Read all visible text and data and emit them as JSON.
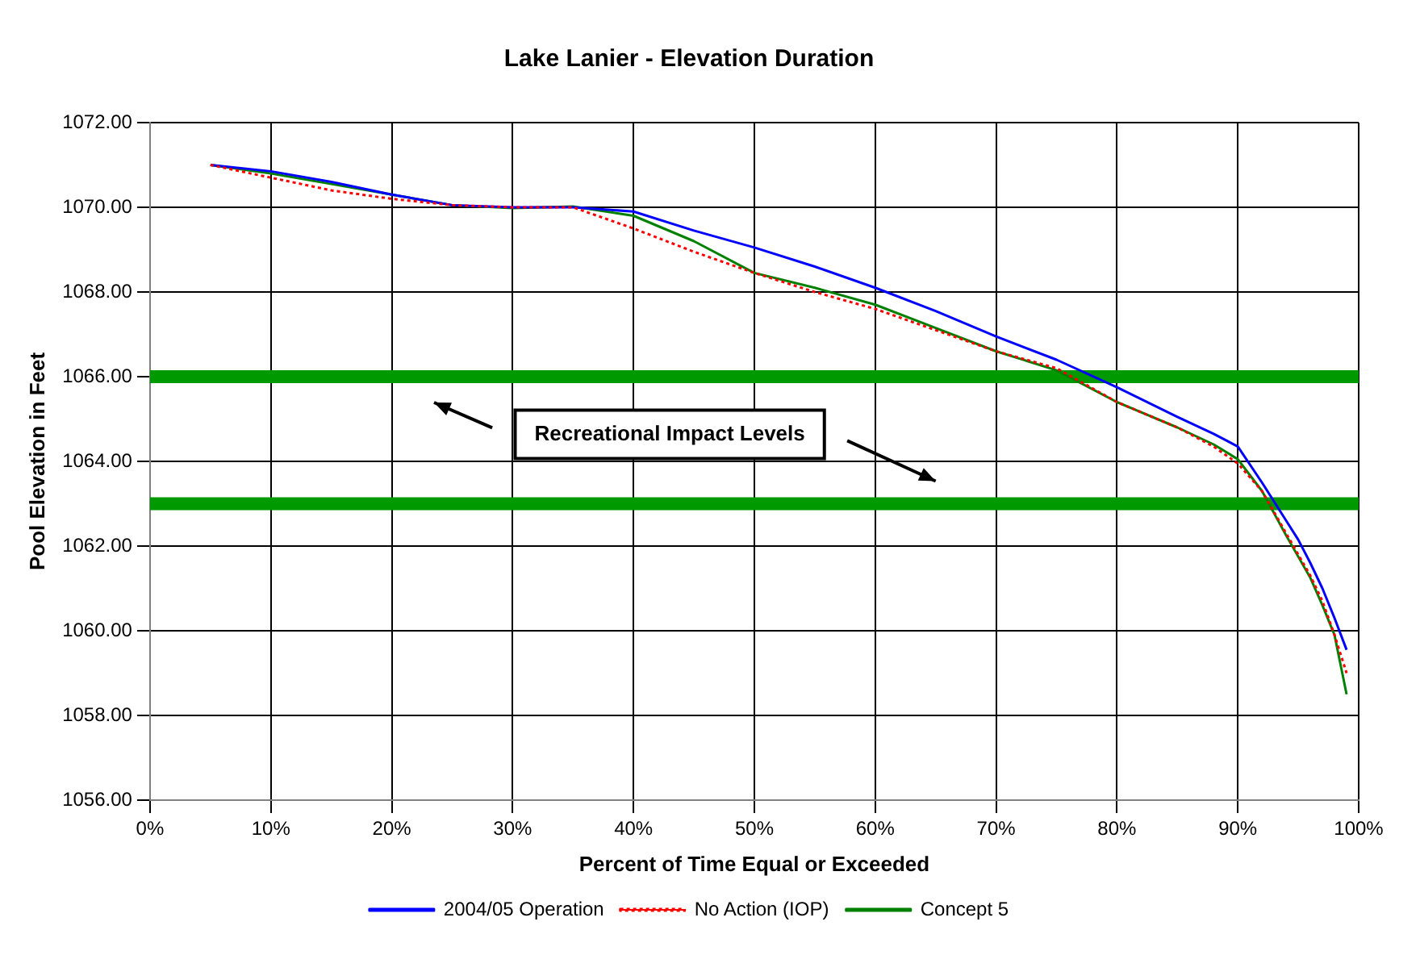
{
  "chart_data": {
    "type": "line",
    "title": "Lake Lanier - Elevation Duration",
    "xlabel": "Percent of Time Equal or Exceeded",
    "ylabel": "Pool Elevation in Feet",
    "x": [
      5,
      10,
      15,
      20,
      25,
      30,
      35,
      40,
      45,
      50,
      55,
      60,
      65,
      70,
      75,
      80,
      85,
      88,
      90,
      92,
      94,
      95,
      96,
      97,
      98,
      99
    ],
    "series": [
      {
        "name": "2004/05 Operation",
        "color": "#0000ff",
        "line_style": "solid",
        "values": [
          1071.0,
          1070.85,
          1070.6,
          1070.3,
          1070.05,
          1070.0,
          1070.0,
          1069.9,
          1069.45,
          1069.05,
          1068.6,
          1068.1,
          1067.55,
          1066.95,
          1066.4,
          1065.75,
          1065.05,
          1064.65,
          1064.35,
          1063.5,
          1062.6,
          1062.15,
          1061.6,
          1061.0,
          1060.3,
          1059.55
        ]
      },
      {
        "name": "No Action (IOP)",
        "color": "#ff0000",
        "line_style": "dotted",
        "values": [
          1071.0,
          1070.7,
          1070.4,
          1070.2,
          1070.05,
          1070.0,
          1070.0,
          1069.5,
          1068.95,
          1068.45,
          1068.0,
          1067.6,
          1067.1,
          1066.6,
          1066.2,
          1065.4,
          1064.8,
          1064.35,
          1063.95,
          1063.3,
          1062.3,
          1061.8,
          1061.3,
          1060.7,
          1059.9,
          1059.0
        ]
      },
      {
        "name": "Concept 5",
        "color": "#008000",
        "line_style": "solid",
        "values": [
          1071.0,
          1070.8,
          1070.55,
          1070.3,
          1070.05,
          1069.98,
          1070.02,
          1069.8,
          1069.2,
          1068.45,
          1068.1,
          1067.7,
          1067.15,
          1066.6,
          1066.15,
          1065.4,
          1064.8,
          1064.4,
          1064.05,
          1063.3,
          1062.25,
          1061.75,
          1061.25,
          1060.6,
          1059.9,
          1058.5
        ]
      }
    ],
    "xlim": [
      0,
      100
    ],
    "xticks": [
      {
        "value": 0,
        "label": "0%"
      },
      {
        "value": 10,
        "label": "10%"
      },
      {
        "value": 20,
        "label": "20%"
      },
      {
        "value": 30,
        "label": "30%"
      },
      {
        "value": 40,
        "label": "40%"
      },
      {
        "value": 50,
        "label": "50%"
      },
      {
        "value": 60,
        "label": "60%"
      },
      {
        "value": 70,
        "label": "70%"
      },
      {
        "value": 80,
        "label": "80%"
      },
      {
        "value": 90,
        "label": "90%"
      },
      {
        "value": 100,
        "label": "100%"
      }
    ],
    "ylim": [
      1056,
      1072
    ],
    "yticks": [
      {
        "value": 1056,
        "label": "1056.00"
      },
      {
        "value": 1058,
        "label": "1058.00"
      },
      {
        "value": 1060,
        "label": "1060.00"
      },
      {
        "value": 1062,
        "label": "1062.00"
      },
      {
        "value": 1064,
        "label": "1064.00"
      },
      {
        "value": 1066,
        "label": "1066.00"
      },
      {
        "value": 1068,
        "label": "1068.00"
      },
      {
        "value": 1070,
        "label": "1070.00"
      },
      {
        "value": 1072,
        "label": "1072.00"
      }
    ],
    "ref_lines": [
      {
        "axis": "y",
        "value": 1066,
        "color": "#009900"
      },
      {
        "axis": "y",
        "value": 1063,
        "color": "#009900"
      }
    ],
    "annotations": [
      "Recreational Impact Levels"
    ],
    "grid": true,
    "legend": "bottom",
    "marker": "none"
  }
}
